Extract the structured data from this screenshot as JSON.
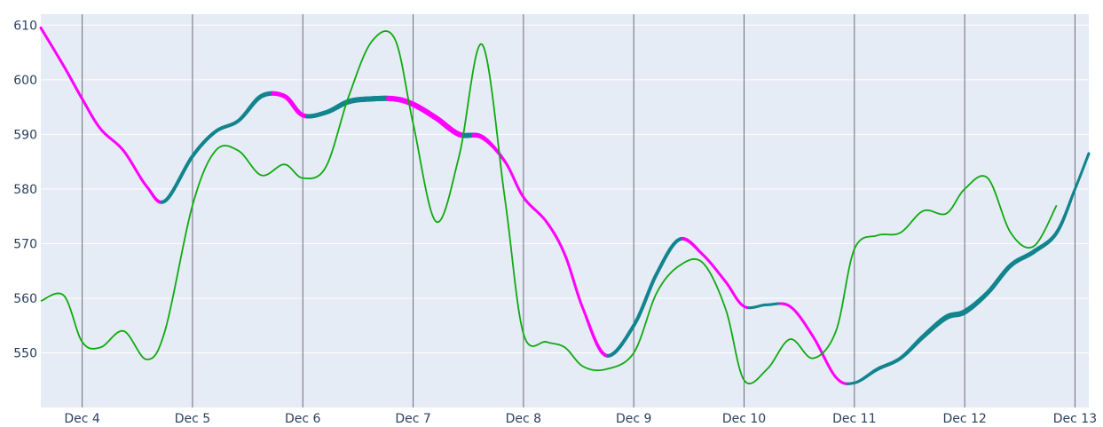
{
  "chart_data": {
    "type": "line",
    "title": "",
    "xlabel": "",
    "ylabel": "",
    "x_range": [
      "2023-12-03T15:00",
      "2023-12-13T03:00"
    ],
    "ylim": [
      540,
      612
    ],
    "x_ticks": [
      {
        "x": "2023-12-04",
        "label": "Dec 4"
      },
      {
        "x": "2023-12-05",
        "label": "Dec 5"
      },
      {
        "x": "2023-12-06",
        "label": "Dec 6"
      },
      {
        "x": "2023-12-07",
        "label": "Dec 7"
      },
      {
        "x": "2023-12-08",
        "label": "Dec 8"
      },
      {
        "x": "2023-12-09",
        "label": "Dec 9"
      },
      {
        "x": "2023-12-10",
        "label": "Dec 10"
      },
      {
        "x": "2023-12-11",
        "label": "Dec 11"
      },
      {
        "x": "2023-12-12",
        "label": "Dec 12"
      },
      {
        "x": "2023-12-13",
        "label": "Dec 13"
      }
    ],
    "y_ticks": [
      550,
      560,
      570,
      580,
      590,
      600,
      610
    ],
    "grid": true,
    "colors": {
      "background": "#e5ecf6",
      "gridline": "#ffffff",
      "vertical_marker": "#6b6f7a",
      "trend_up": "#12848d",
      "trend_down": "#ff00ff",
      "secondary_line": "#10aa10"
    },
    "series": [
      {
        "name": "",
        "color_mode": "trend",
        "points": [
          [
            "2023-12-03T15:00",
            609.5,
            3
          ],
          [
            "2023-12-03T20:00",
            602.5,
            3
          ],
          [
            "2023-12-04T00:00",
            596.5,
            3
          ],
          [
            "2023-12-04T04:00",
            591.0,
            3
          ],
          [
            "2023-12-04T09:00",
            587.0,
            3
          ],
          [
            "2023-12-04T14:00",
            580.5,
            3
          ],
          [
            "2023-12-04T18:00",
            577.8,
            4
          ],
          [
            "2023-12-05T00:00",
            586.0,
            4
          ],
          [
            "2023-12-05T05:00",
            590.5,
            4
          ],
          [
            "2023-12-05T10:00",
            592.5,
            4
          ],
          [
            "2023-12-05T15:00",
            597.0,
            5
          ],
          [
            "2023-12-05T20:00",
            597.0,
            5
          ],
          [
            "2023-12-06T00:00",
            593.5,
            5
          ],
          [
            "2023-12-06T05:00",
            594.0,
            5
          ],
          [
            "2023-12-06T10:00",
            596.0,
            6
          ],
          [
            "2023-12-06T15:00",
            596.5,
            6
          ],
          [
            "2023-12-06T20:00",
            596.5,
            6
          ],
          [
            "2023-12-07T00:00",
            595.5,
            6
          ],
          [
            "2023-12-07T05:00",
            593.0,
            6
          ],
          [
            "2023-12-07T10:00",
            590.0,
            6
          ],
          [
            "2023-12-07T15:00",
            589.5,
            5
          ],
          [
            "2023-12-07T20:00",
            585.0,
            3
          ],
          [
            "2023-12-08T00:00",
            578.5,
            3
          ],
          [
            "2023-12-08T05:00",
            574.0,
            3
          ],
          [
            "2023-12-08T09:00",
            568.0,
            3
          ],
          [
            "2023-12-08T13:00",
            558.0,
            3
          ],
          [
            "2023-12-08T18:00",
            549.5,
            4
          ],
          [
            "2023-12-09T00:00",
            555.0,
            4
          ],
          [
            "2023-12-09T05:00",
            564.5,
            4
          ],
          [
            "2023-12-09T10:00",
            570.8,
            4
          ],
          [
            "2023-12-09T15:00",
            568.0,
            3
          ],
          [
            "2023-12-09T20:00",
            563.0,
            3
          ],
          [
            "2023-12-10T00:00",
            558.5,
            3
          ],
          [
            "2023-12-10T05:00",
            558.8,
            3
          ],
          [
            "2023-12-10T10:00",
            558.5,
            3
          ],
          [
            "2023-12-10T15:00",
            553.0,
            3
          ],
          [
            "2023-12-10T20:00",
            545.5,
            3
          ],
          [
            "2023-12-11T00:00",
            544.5,
            3
          ],
          [
            "2023-12-11T05:00",
            547.0,
            4
          ],
          [
            "2023-12-11T10:00",
            549.0,
            4
          ],
          [
            "2023-12-11T15:00",
            553.0,
            5
          ],
          [
            "2023-12-11T20:00",
            556.5,
            6
          ],
          [
            "2023-12-12T00:00",
            557.5,
            6
          ],
          [
            "2023-12-12T05:00",
            561.0,
            5
          ],
          [
            "2023-12-12T10:00",
            566.0,
            5
          ],
          [
            "2023-12-12T15:00",
            568.5,
            5
          ],
          [
            "2023-12-12T20:00",
            572.0,
            4
          ],
          [
            "2023-12-13T00:00",
            580.0,
            3
          ],
          [
            "2023-12-13T03:00",
            586.5,
            3
          ]
        ]
      },
      {
        "name": "",
        "color_mode": "single",
        "points": [
          [
            "2023-12-03T15:00",
            559.5
          ],
          [
            "2023-12-03T20:00",
            560.5
          ],
          [
            "2023-12-04T00:00",
            552.0
          ],
          [
            "2023-12-04T04:00",
            551.0
          ],
          [
            "2023-12-04T09:00",
            554.0
          ],
          [
            "2023-12-04T14:00",
            548.8
          ],
          [
            "2023-12-04T18:00",
            554.0
          ],
          [
            "2023-12-05T00:00",
            577.0
          ],
          [
            "2023-12-05T05:00",
            587.0
          ],
          [
            "2023-12-05T10:00",
            587.0
          ],
          [
            "2023-12-05T15:00",
            582.5
          ],
          [
            "2023-12-05T20:00",
            584.5
          ],
          [
            "2023-12-06T00:00",
            582.0
          ],
          [
            "2023-12-06T05:00",
            584.0
          ],
          [
            "2023-12-06T10:00",
            597.0
          ],
          [
            "2023-12-06T15:00",
            607.0
          ],
          [
            "2023-12-06T20:00",
            607.5
          ],
          [
            "2023-12-07T00:00",
            592.0
          ],
          [
            "2023-12-07T05:00",
            574.0
          ],
          [
            "2023-12-07T10:00",
            586.0
          ],
          [
            "2023-12-07T15:00",
            606.5
          ],
          [
            "2023-12-07T20:00",
            578.0
          ],
          [
            "2023-12-08T00:00",
            553.5
          ],
          [
            "2023-12-08T05:00",
            552.0
          ],
          [
            "2023-12-08T09:00",
            551.0
          ],
          [
            "2023-12-08T13:00",
            547.5
          ],
          [
            "2023-12-08T18:00",
            547.0
          ],
          [
            "2023-12-09T00:00",
            550.0
          ],
          [
            "2023-12-09T05:00",
            561.0
          ],
          [
            "2023-12-09T10:00",
            566.0
          ],
          [
            "2023-12-09T15:00",
            566.5
          ],
          [
            "2023-12-09T20:00",
            558.0
          ],
          [
            "2023-12-10T00:00",
            545.0
          ],
          [
            "2023-12-10T05:00",
            547.0
          ],
          [
            "2023-12-10T10:00",
            552.5
          ],
          [
            "2023-12-10T15:00",
            549.0
          ],
          [
            "2023-12-10T20:00",
            554.0
          ],
          [
            "2023-12-11T00:00",
            569.0
          ],
          [
            "2023-12-11T05:00",
            571.5
          ],
          [
            "2023-12-11T10:00",
            572.0
          ],
          [
            "2023-12-11T15:00",
            576.0
          ],
          [
            "2023-12-11T20:00",
            575.5
          ],
          [
            "2023-12-12T00:00",
            580.0
          ],
          [
            "2023-12-12T05:00",
            582.0
          ],
          [
            "2023-12-12T10:00",
            572.0
          ],
          [
            "2023-12-12T15:00",
            569.5
          ],
          [
            "2023-12-12T20:00",
            577.0
          ]
        ]
      }
    ]
  }
}
